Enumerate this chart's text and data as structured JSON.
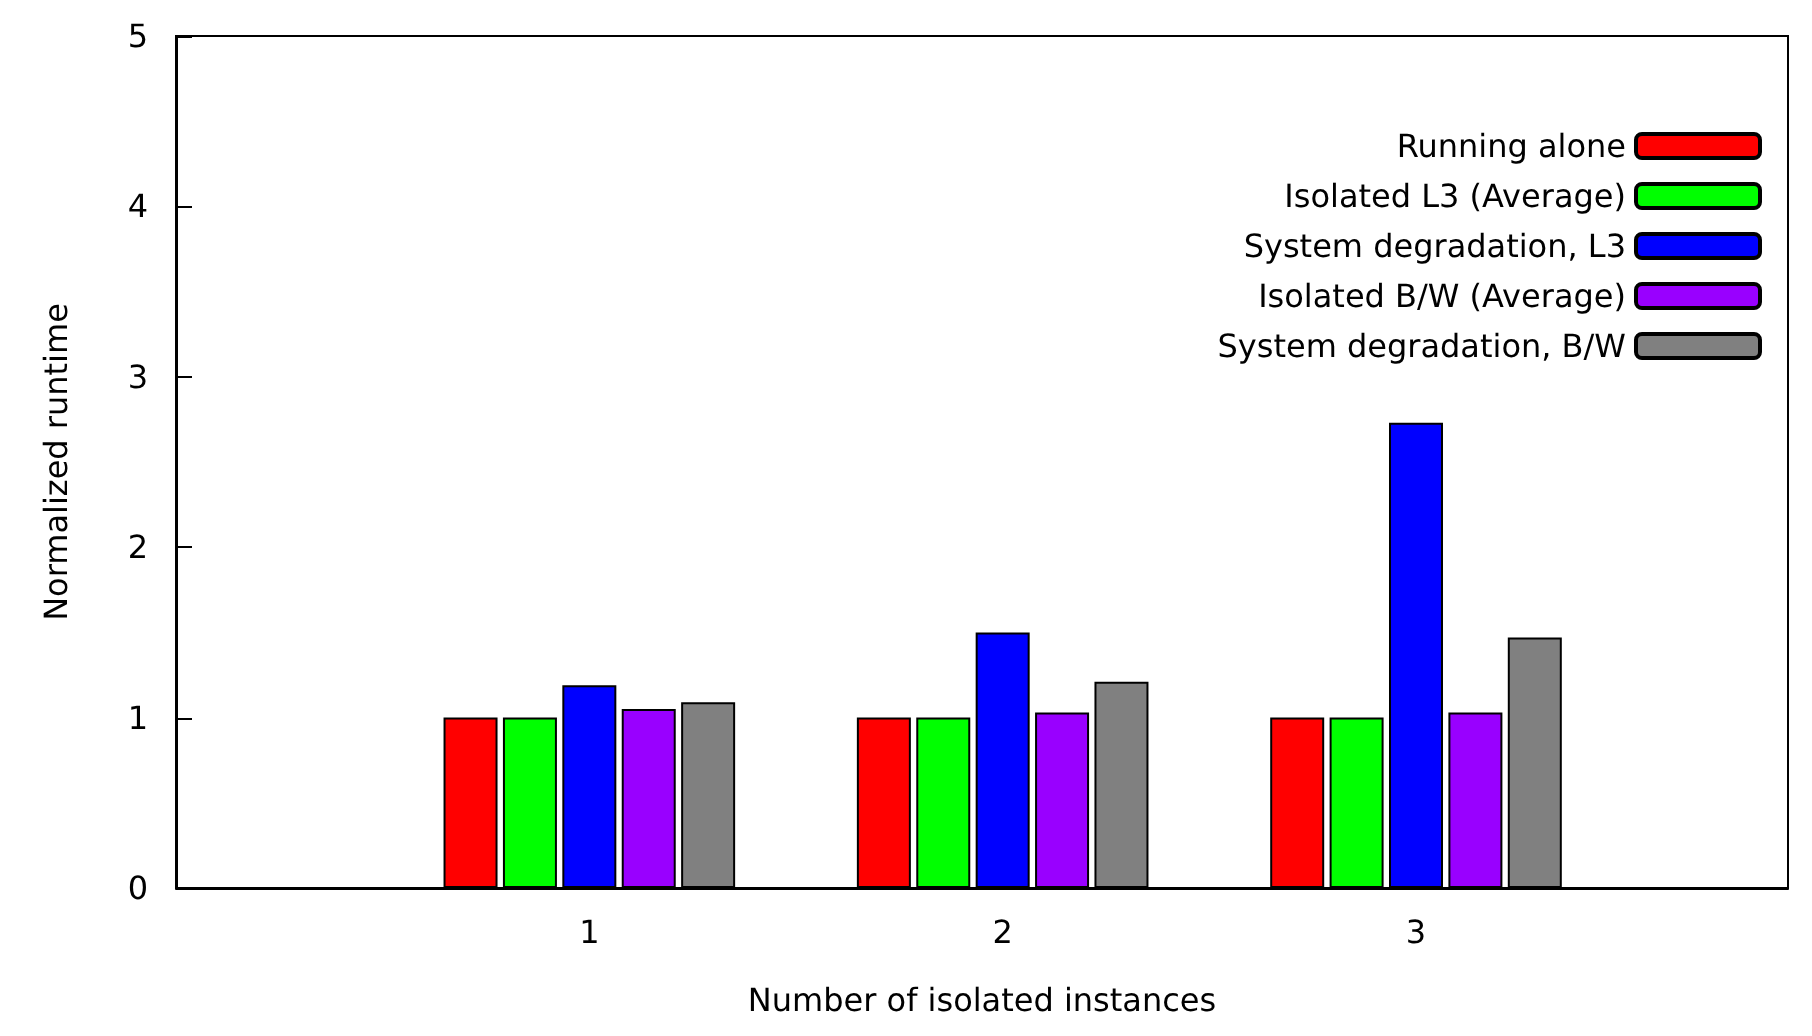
{
  "chart_data": {
    "type": "bar",
    "xlabel": "Number of isolated instances",
    "ylabel": "Normalized runtime",
    "x": [
      1,
      2,
      3
    ],
    "xlim": [
      0,
      3.9
    ],
    "xticks": [
      1,
      2,
      3
    ],
    "ylim": [
      0,
      5
    ],
    "yticks": [
      0,
      1,
      2,
      3,
      4,
      5
    ],
    "grid": false,
    "legend": "top right",
    "series": [
      {
        "name": "Running alone",
        "color": "#ff0000",
        "values": [
          1.0,
          1.0,
          1.0
        ]
      },
      {
        "name": "Isolated L3 (Average)",
        "color": "#00ff00",
        "values": [
          1.0,
          1.0,
          1.0
        ]
      },
      {
        "name": "System degradation, L3",
        "color": "#0000ff",
        "values": [
          1.19,
          1.5,
          2.73
        ]
      },
      {
        "name": "Isolated B/W (Average)",
        "color": "#9900ff",
        "values": [
          1.05,
          1.03,
          1.03
        ]
      },
      {
        "name": "System degradation, B/W",
        "color": "#808080",
        "values": [
          1.09,
          1.21,
          1.47
        ]
      }
    ]
  }
}
